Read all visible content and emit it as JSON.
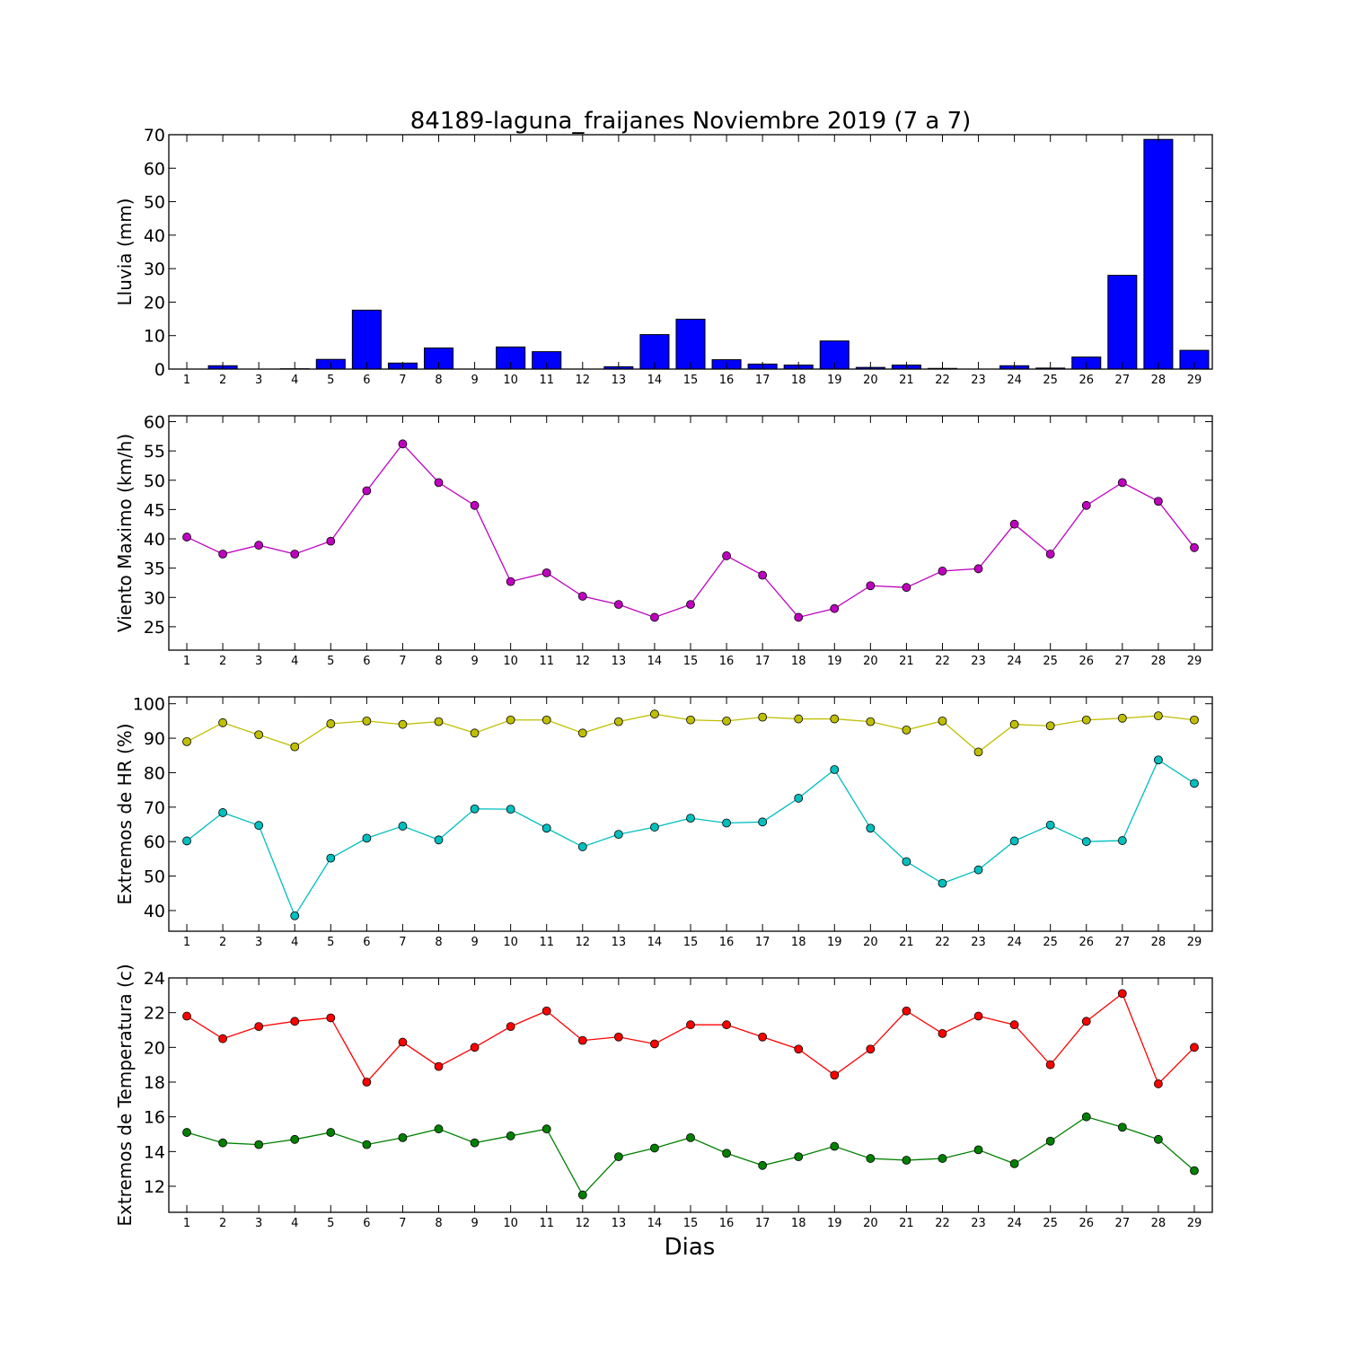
{
  "chart_data": {
    "type": "line",
    "title": "84189-laguna_fraijanes Noviembre 2019  (7 a 7)",
    "xlabel": "Dias",
    "x": [
      1,
      2,
      3,
      4,
      5,
      6,
      7,
      8,
      9,
      10,
      11,
      12,
      13,
      14,
      15,
      16,
      17,
      18,
      19,
      20,
      21,
      22,
      23,
      24,
      25,
      26,
      27,
      28,
      29
    ],
    "panels": [
      {
        "id": "lluvia",
        "type": "bar",
        "ylabel": "Lluvia (mm)",
        "ylim": [
          0,
          70
        ],
        "yticks": [
          0,
          10,
          20,
          30,
          40,
          50,
          60,
          70
        ],
        "series": [
          {
            "color": "#0000ff",
            "values": [
              0,
              1.0,
              0,
              0.1,
              2.9,
              17.6,
              1.8,
              6.3,
              0,
              6.6,
              5.2,
              0,
              0.7,
              10.3,
              14.9,
              2.8,
              1.5,
              1.2,
              8.4,
              0.5,
              1.2,
              0.2,
              0,
              1.0,
              0.3,
              3.6,
              28.0,
              68.6,
              5.6
            ]
          }
        ]
      },
      {
        "id": "viento",
        "type": "line",
        "ylabel": "Viento Maximo (km/h)",
        "ylim": [
          21,
          61
        ],
        "yticks": [
          25,
          30,
          35,
          40,
          45,
          50,
          55,
          60
        ],
        "series": [
          {
            "color": "#bf00bf",
            "values": [
              40.3,
              37.4,
              38.9,
              37.4,
              39.6,
              48.2,
              56.2,
              49.6,
              45.7,
              32.7,
              34.2,
              30.2,
              28.8,
              26.6,
              28.8,
              37.1,
              33.8,
              26.6,
              28.1,
              32.0,
              31.7,
              34.5,
              34.9,
              42.5,
              37.4,
              45.7,
              49.6,
              46.4,
              38.5
            ]
          }
        ]
      },
      {
        "id": "hr",
        "type": "line",
        "ylabel": "Extremos de HR (%)",
        "ylim": [
          34,
          102
        ],
        "yticks": [
          40,
          50,
          60,
          70,
          80,
          90,
          100
        ],
        "series": [
          {
            "color": "#bfbf00",
            "values": [
              89.0,
              94.5,
              91.0,
              87.5,
              94.2,
              95.0,
              94.0,
              94.8,
              91.5,
              95.3,
              95.3,
              91.5,
              94.8,
              97.0,
              95.3,
              95.0,
              96.1,
              95.6,
              95.6,
              94.8,
              92.4,
              95.0,
              86.0,
              94.0,
              93.6,
              95.3,
              95.8,
              96.5,
              95.3
            ]
          },
          {
            "color": "#00bfbf",
            "values": [
              60.2,
              68.4,
              64.7,
              38.5,
              55.2,
              61.0,
              64.5,
              60.5,
              69.5,
              69.4,
              63.9,
              58.5,
              62.1,
              64.2,
              66.8,
              65.4,
              65.7,
              72.6,
              80.9,
              63.9,
              54.2,
              47.9,
              51.8,
              60.2,
              64.8,
              60.0,
              60.3,
              83.7,
              76.9
            ]
          }
        ]
      },
      {
        "id": "temperatura",
        "type": "line",
        "ylabel": "Extremos de Temperatura (c)",
        "ylim": [
          10.5,
          24
        ],
        "yticks": [
          12,
          14,
          16,
          18,
          20,
          22,
          24
        ],
        "series": [
          {
            "color": "#ff0000",
            "values": [
              21.8,
              20.5,
              21.2,
              21.5,
              21.7,
              18.0,
              20.3,
              18.9,
              20.0,
              21.2,
              22.1,
              20.4,
              20.6,
              20.2,
              21.3,
              21.3,
              20.6,
              19.9,
              18.4,
              19.9,
              22.1,
              20.8,
              21.8,
              21.3,
              19.0,
              21.5,
              23.1,
              17.9,
              20.0
            ]
          },
          {
            "color": "#008000",
            "values": [
              15.1,
              14.5,
              14.4,
              14.7,
              15.1,
              14.4,
              14.8,
              15.3,
              14.5,
              14.9,
              15.3,
              11.5,
              13.7,
              14.2,
              14.8,
              13.9,
              13.2,
              13.7,
              14.3,
              13.6,
              13.5,
              13.6,
              14.1,
              13.3,
              14.6,
              16.0,
              15.4,
              14.7,
              12.9
            ]
          }
        ]
      }
    ]
  }
}
